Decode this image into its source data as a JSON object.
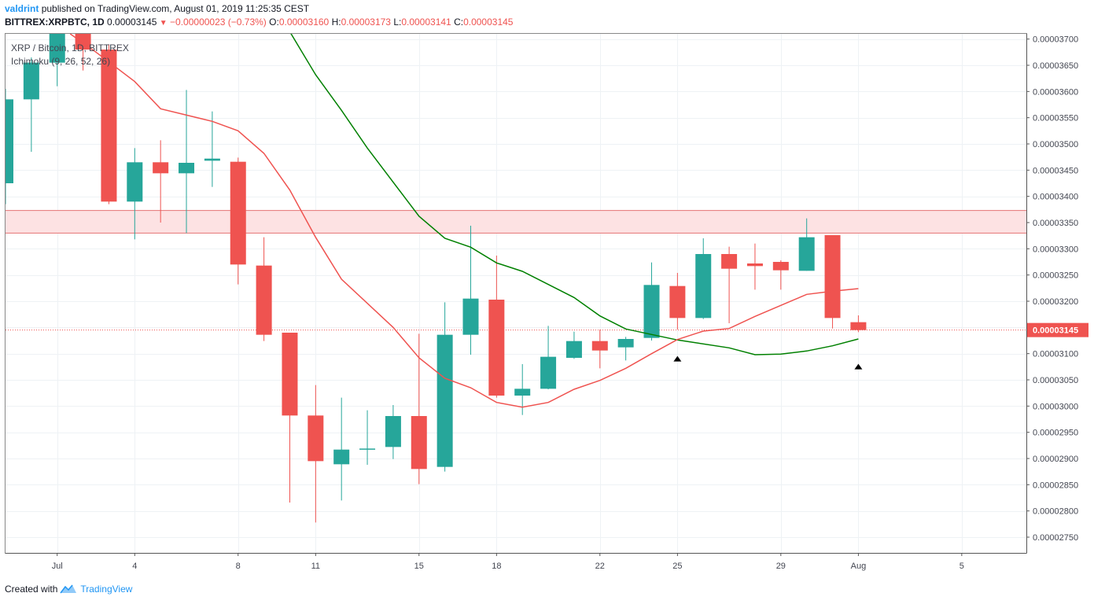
{
  "header": {
    "user": "valdrint",
    "published": "published on TradingView.com, August 01, 2019 11:25:35 CEST",
    "symbol": "BITTREX:XRPBTC, 1D",
    "last": "0.00003145",
    "change": "−0.00000023 (−0.73%)",
    "o_label": "O:",
    "o_value": "0.00003160",
    "h_label": "H:",
    "h_value": "0.00003173",
    "l_label": "L:",
    "l_value": "0.00003141",
    "c_label": "C:",
    "c_value": "0.00003145"
  },
  "legend": {
    "title": "XRP / Bitcoin, 1D, BITTREX",
    "indicator": "Ichimoku (9, 26, 52, 26)"
  },
  "footer": {
    "created": "Created with",
    "brand": "TradingView"
  },
  "colors": {
    "up": "#26a69a",
    "down": "#ef5350",
    "conversion_line": "#ef5350",
    "base_line": "#008000",
    "zone_fill": "#fde2e3",
    "zone_border": "#e57373",
    "grid": "#eef2f5",
    "axis_text": "#434651",
    "price_tag": "#ef5350"
  },
  "chart_data": {
    "type": "candlestick",
    "y_axis": {
      "min": 2.72e-05,
      "max": 3.71e-05,
      "ticks": [
        "0.00003700",
        "0.00003650",
        "0.00003600",
        "0.00003550",
        "0.00003500",
        "0.00003450",
        "0.00003400",
        "0.00003350",
        "0.00003300",
        "0.00003250",
        "0.00003200",
        "0.00003150",
        "0.00003100",
        "0.00003050",
        "0.00003000",
        "0.00002950",
        "0.00002900",
        "0.00002850",
        "0.00002800",
        "0.00002750"
      ]
    },
    "x_axis": {
      "start_day": 29,
      "end_day": 68.5,
      "ticks": [
        {
          "day": 31,
          "label": "Jul"
        },
        {
          "day": 34,
          "label": "4"
        },
        {
          "day": 38,
          "label": "8"
        },
        {
          "day": 41,
          "label": "11"
        },
        {
          "day": 45,
          "label": "15"
        },
        {
          "day": 48,
          "label": "18"
        },
        {
          "day": 52,
          "label": "22"
        },
        {
          "day": 55,
          "label": "25"
        },
        {
          "day": 59,
          "label": "29"
        },
        {
          "day": 62,
          "label": "Aug"
        },
        {
          "day": 66,
          "label": "5"
        }
      ]
    },
    "candles": [
      {
        "date": "2019-06-29",
        "o": 3.425e-05,
        "h": 3.605e-05,
        "l": 3.385e-05,
        "c": 3.585e-05
      },
      {
        "date": "2019-06-30",
        "o": 3.585e-05,
        "h": 3.665e-05,
        "l": 3.485e-05,
        "c": 3.655e-05
      },
      {
        "date": "2019-07-01",
        "o": 3.655e-05,
        "h": 3.71e-05,
        "l": 3.61e-05,
        "c": 3.71e-05
      },
      {
        "date": "2019-07-02",
        "o": 3.71e-05,
        "h": 3.71e-05,
        "l": 3.64e-05,
        "c": 3.68e-05
      },
      {
        "date": "2019-07-03",
        "o": 3.68e-05,
        "h": 3.69e-05,
        "l": 3.385e-05,
        "c": 3.39e-05
      },
      {
        "date": "2019-07-04",
        "o": 3.39e-05,
        "h": 3.492e-05,
        "l": 3.318e-05,
        "c": 3.465e-05
      },
      {
        "date": "2019-07-05",
        "o": 3.465e-05,
        "h": 3.507e-05,
        "l": 3.35e-05,
        "c": 3.444e-05
      },
      {
        "date": "2019-07-06",
        "o": 3.444e-05,
        "h": 3.603e-05,
        "l": 3.33e-05,
        "c": 3.464e-05
      },
      {
        "date": "2019-07-07",
        "o": 3.468e-05,
        "h": 3.562e-05,
        "l": 3.418e-05,
        "c": 3.472e-05
      },
      {
        "date": "2019-07-08",
        "o": 3.466e-05,
        "h": 3.474e-05,
        "l": 3.232e-05,
        "c": 3.27e-05
      },
      {
        "date": "2019-07-09",
        "o": 3.268e-05,
        "h": 3.322e-05,
        "l": 3.124e-05,
        "c": 3.136e-05
      },
      {
        "date": "2019-07-10",
        "o": 3.14e-05,
        "h": 3.14e-05,
        "l": 2.816e-05,
        "c": 2.982e-05
      },
      {
        "date": "2019-07-11",
        "o": 2.982e-05,
        "h": 3.04e-05,
        "l": 2.778e-05,
        "c": 2.895e-05
      },
      {
        "date": "2019-07-12",
        "o": 2.889e-05,
        "h": 3.016e-05,
        "l": 2.82e-05,
        "c": 2.917e-05
      },
      {
        "date": "2019-07-13",
        "o": 2.917e-05,
        "h": 2.992e-05,
        "l": 2.888e-05,
        "c": 2.919e-05
      },
      {
        "date": "2019-07-14",
        "o": 2.922e-05,
        "h": 3.002e-05,
        "l": 2.899e-05,
        "c": 2.981e-05
      },
      {
        "date": "2019-07-15",
        "o": 2.981e-05,
        "h": 3.138e-05,
        "l": 2.851e-05,
        "c": 2.88e-05
      },
      {
        "date": "2019-07-16",
        "o": 2.884e-05,
        "h": 3.198e-05,
        "l": 2.875e-05,
        "c": 3.136e-05
      },
      {
        "date": "2019-07-17",
        "o": 3.136e-05,
        "h": 3.344e-05,
        "l": 3.098e-05,
        "c": 3.205e-05
      },
      {
        "date": "2019-07-18",
        "o": 3.203e-05,
        "h": 3.287e-05,
        "l": 3.016e-05,
        "c": 3.02e-05
      },
      {
        "date": "2019-07-19",
        "o": 3.02e-05,
        "h": 3.08e-05,
        "l": 2.983e-05,
        "c": 3.033e-05
      },
      {
        "date": "2019-07-20",
        "o": 3.033e-05,
        "h": 3.153e-05,
        "l": 3.032e-05,
        "c": 3.094e-05
      },
      {
        "date": "2019-07-21",
        "o": 3.092e-05,
        "h": 3.142e-05,
        "l": 3.09e-05,
        "c": 3.124e-05
      },
      {
        "date": "2019-07-22",
        "o": 3.124e-05,
        "h": 3.146e-05,
        "l": 3.072e-05,
        "c": 3.106e-05
      },
      {
        "date": "2019-07-23",
        "o": 3.112e-05,
        "h": 3.132e-05,
        "l": 3.087e-05,
        "c": 3.128e-05
      },
      {
        "date": "2019-07-24",
        "o": 3.13e-05,
        "h": 3.274e-05,
        "l": 3.125e-05,
        "c": 3.231e-05
      },
      {
        "date": "2019-07-25",
        "o": 3.229e-05,
        "h": 3.254e-05,
        "l": 3.146e-05,
        "c": 3.168e-05
      },
      {
        "date": "2019-07-26",
        "o": 3.168e-05,
        "h": 3.32e-05,
        "l": 3.166e-05,
        "c": 3.29e-05
      },
      {
        "date": "2019-07-27",
        "o": 3.29e-05,
        "h": 3.304e-05,
        "l": 3.158e-05,
        "c": 3.262e-05
      },
      {
        "date": "2019-07-28",
        "o": 3.272e-05,
        "h": 3.31e-05,
        "l": 3.222e-05,
        "c": 3.267e-05
      },
      {
        "date": "2019-07-29",
        "o": 3.275e-05,
        "h": 3.278e-05,
        "l": 3.222e-05,
        "c": 3.259e-05
      },
      {
        "date": "2019-07-30",
        "o": 3.258e-05,
        "h": 3.358e-05,
        "l": 3.258e-05,
        "c": 3.322e-05
      },
      {
        "date": "2019-07-31",
        "o": 3.326e-05,
        "h": 3.326e-05,
        "l": 3.148e-05,
        "c": 3.168e-05
      },
      {
        "date": "2019-08-01",
        "o": 3.16e-05,
        "h": 3.173e-05,
        "l": 3.141e-05,
        "c": 3.145e-05
      }
    ],
    "ichimoku": {
      "conversion_line": [
        [
          31.5,
          3.71e-05
        ],
        [
          32.5,
          3.675e-05
        ],
        [
          34.0,
          3.619e-05
        ],
        [
          35.0,
          3.567e-05
        ],
        [
          37.0,
          3.543e-05
        ],
        [
          38.0,
          3.525e-05
        ],
        [
          39.0,
          3.482e-05
        ],
        [
          40.0,
          3.412e-05
        ],
        [
          41.0,
          3.322e-05
        ],
        [
          42.0,
          3.242e-05
        ],
        [
          44.0,
          3.15e-05
        ],
        [
          45.0,
          3.092e-05
        ],
        [
          46.0,
          3.053e-05
        ],
        [
          47.0,
          3.035e-05
        ],
        [
          48.0,
          3.007e-05
        ],
        [
          49.0,
          2.998e-05
        ],
        [
          50.0,
          3.007e-05
        ],
        [
          51.0,
          3.032e-05
        ],
        [
          52.0,
          3.049e-05
        ],
        [
          53.0,
          3.072e-05
        ],
        [
          54.0,
          3.1e-05
        ],
        [
          55.0,
          3.127e-05
        ],
        [
          56.0,
          3.143e-05
        ],
        [
          57.0,
          3.148e-05
        ],
        [
          58.0,
          3.171e-05
        ],
        [
          60.0,
          3.213e-05
        ],
        [
          61.0,
          3.219e-05
        ],
        [
          62.0,
          3.224e-05
        ]
      ],
      "base_line": [
        [
          40.0,
          3.714e-05
        ],
        [
          41.0,
          3.632e-05
        ],
        [
          42.0,
          3.564e-05
        ],
        [
          43.0,
          3.492e-05
        ],
        [
          45.0,
          3.362e-05
        ],
        [
          46.0,
          3.32e-05
        ],
        [
          47.0,
          3.303e-05
        ],
        [
          48.0,
          3.273e-05
        ],
        [
          49.0,
          3.257e-05
        ],
        [
          51.0,
          3.207e-05
        ],
        [
          52.0,
          3.172e-05
        ],
        [
          53.0,
          3.147e-05
        ],
        [
          55.0,
          3.126e-05
        ],
        [
          57.0,
          3.111e-05
        ],
        [
          58.0,
          3.098e-05
        ],
        [
          59.0,
          3.099e-05
        ],
        [
          60.0,
          3.105e-05
        ],
        [
          61.0,
          3.115e-05
        ],
        [
          62.0,
          3.128e-05
        ]
      ]
    },
    "resistance_zone": {
      "low": 3.33e-05,
      "high": 3.373e-05
    },
    "current_price": {
      "value": 3.145e-05,
      "label": "0.00003145"
    },
    "markers": [
      {
        "day": 55.0,
        "price": 3.091e-05
      },
      {
        "day": 62.0,
        "price": 3.076e-05
      }
    ]
  }
}
